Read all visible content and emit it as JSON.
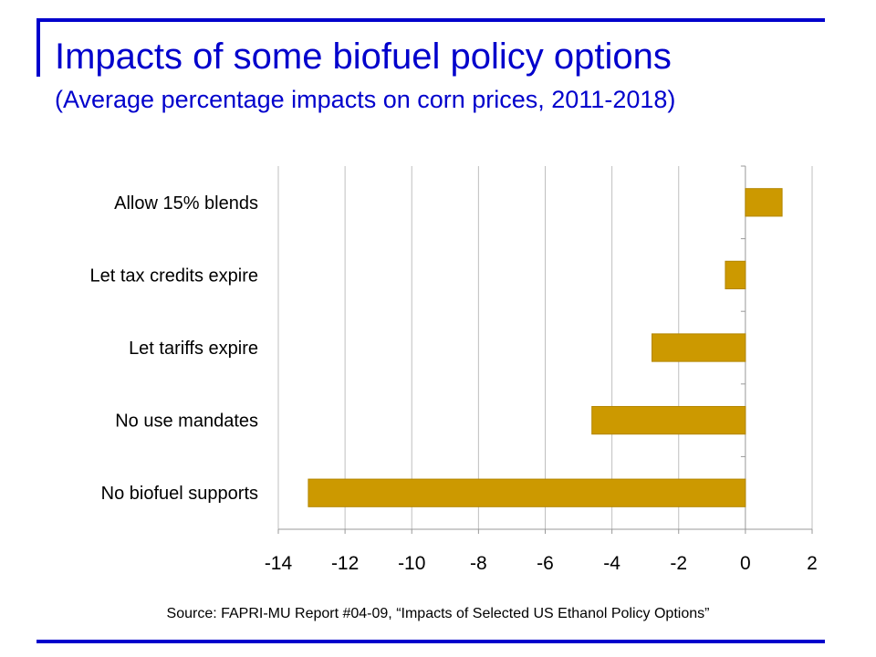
{
  "slide": {
    "title": "Impacts of some biofuel policy options",
    "subtitle": "(Average percentage impacts on corn prices, 2011-2018)",
    "source": "Source: FAPRI-MU Report #04-09, “Impacts of Selected US Ethanol Policy Options”"
  },
  "colors": {
    "accent": "#0000cc",
    "bar": "#cc9900",
    "grid": "#bfbfbf"
  },
  "chart_data": {
    "type": "bar",
    "orientation": "horizontal",
    "categories": [
      "Allow 15% blends",
      "Let tax credits expire",
      "Let tariffs expire",
      "No use mandates",
      "No biofuel supports"
    ],
    "values": [
      1.1,
      -0.6,
      -2.8,
      -4.6,
      -13.1
    ],
    "xlim": [
      -14,
      2
    ],
    "xticks": [
      -14,
      -12,
      -10,
      -8,
      -6,
      -4,
      -2,
      0,
      2
    ],
    "grid": true,
    "legend": "none"
  }
}
